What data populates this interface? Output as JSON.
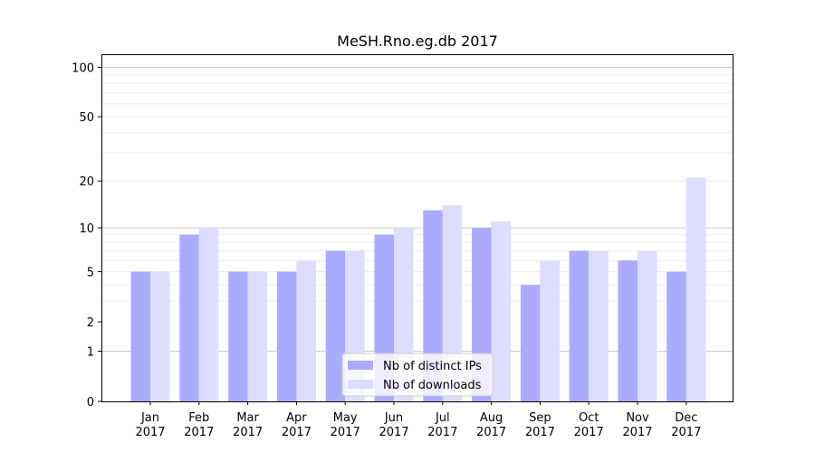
{
  "chart_data": {
    "type": "bar",
    "title": "MeSH.Rno.eg.db 2017",
    "xlabel": "",
    "ylabel": "",
    "yscale": "log(1+y)",
    "ylim": [
      0,
      120
    ],
    "yticks": [
      0,
      1,
      2,
      5,
      10,
      20,
      50,
      100
    ],
    "ytick_labels": [
      "0",
      "1",
      "2",
      "5",
      "10",
      "20",
      "50",
      "100"
    ],
    "categories": [
      "Jan\n2017",
      "Feb\n2017",
      "Mar\n2017",
      "Apr\n2017",
      "May\n2017",
      "Jun\n2017",
      "Jul\n2017",
      "Aug\n2017",
      "Sep\n2017",
      "Oct\n2017",
      "Nov\n2017",
      "Dec\n2017"
    ],
    "series": [
      {
        "name": "Nb of distinct IPs",
        "color": "#aaaaff",
        "values": [
          5,
          9,
          5,
          5,
          7,
          9,
          13,
          10,
          4,
          7,
          6,
          5
        ]
      },
      {
        "name": "Nb of downloads",
        "color": "#ddddff",
        "values": [
          5,
          10,
          5,
          6,
          7,
          10,
          14,
          11,
          6,
          7,
          7,
          21
        ]
      }
    ],
    "grid": true,
    "legend_position": "bottom-center"
  }
}
